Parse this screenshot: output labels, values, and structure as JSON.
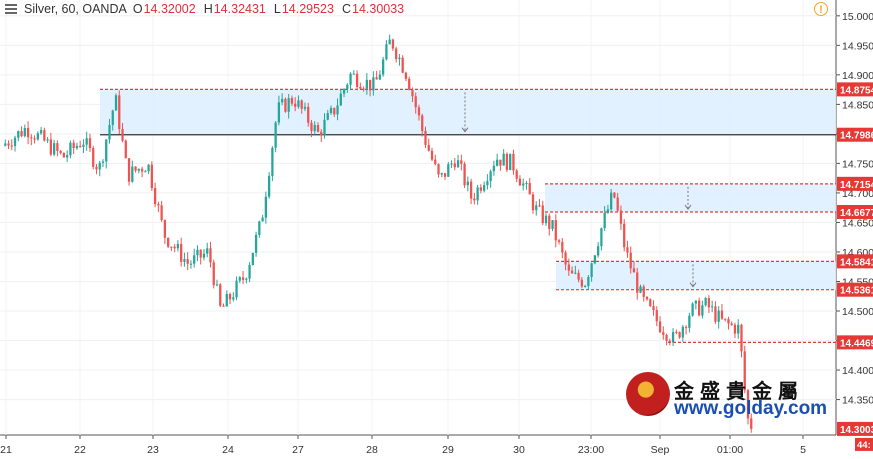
{
  "header": {
    "symbol": "Silver, 60, OANDA",
    "open_label": "O",
    "open": "14.32002",
    "high_label": "H",
    "high": "14.32431",
    "low_label": "L",
    "low": "14.29523",
    "close_label": "C",
    "close": "14.30033"
  },
  "icons": {
    "menu": "menu-icon",
    "warning": "warning-icon"
  },
  "watermark": {
    "cn_text": "金盛貴金屬",
    "url": "www.golday.com"
  },
  "colors": {
    "up": "#26a69a",
    "down": "#ef5350",
    "zone_fill": "#ddeeff",
    "level_line": "#e53935",
    "price_tag": "#e53935"
  },
  "chart_data": {
    "type": "candlestick",
    "title": "",
    "xlabel": "",
    "ylabel": "",
    "ylim": [
      14.29,
      15.02
    ],
    "y_ticks": [
      "15.000",
      "14.950",
      "14.900",
      "14.850",
      "14.800",
      "14.750",
      "14.700",
      "14.650",
      "14.600",
      "14.550",
      "14.500",
      "14.450",
      "14.400",
      "14.350"
    ],
    "x_ticks": [
      "21",
      "22",
      "23",
      "24",
      "27",
      "28",
      "29",
      "30",
      "23:00",
      "Sep",
      "01:00",
      "5"
    ],
    "price_levels": [
      {
        "label": "14.8754",
        "value": 14.8754
      },
      {
        "label": "14.7986",
        "value": 14.7986
      },
      {
        "label": "14.7154",
        "value": 14.7154
      },
      {
        "label": "14.6677",
        "value": 14.6677
      },
      {
        "label": "14.5841",
        "value": 14.5841
      },
      {
        "label": "14.5361",
        "value": 14.5361
      },
      {
        "label": "14.4469",
        "value": 14.4469
      }
    ],
    "zones": [
      {
        "top": 14.8754,
        "bottom": 14.7986
      },
      {
        "top": 14.7154,
        "bottom": 14.6677
      },
      {
        "top": 14.5841,
        "bottom": 14.5361
      }
    ],
    "last_price": {
      "label": "14.3003",
      "value": 14.3003
    },
    "countdown": "44:",
    "close_path": [
      {
        "t": 0.0,
        "c": 14.78
      },
      {
        "t": 0.03,
        "c": 14.81
      },
      {
        "t": 0.05,
        "c": 14.79
      },
      {
        "t": 0.075,
        "c": 14.76
      },
      {
        "t": 0.1,
        "c": 14.79
      },
      {
        "t": 0.12,
        "c": 14.74
      },
      {
        "t": 0.14,
        "c": 14.86
      },
      {
        "t": 0.155,
        "c": 14.73
      },
      {
        "t": 0.18,
        "c": 14.75
      },
      {
        "t": 0.2,
        "c": 14.63
      },
      {
        "t": 0.23,
        "c": 14.58
      },
      {
        "t": 0.255,
        "c": 14.6
      },
      {
        "t": 0.27,
        "c": 14.5
      },
      {
        "t": 0.3,
        "c": 14.56
      },
      {
        "t": 0.32,
        "c": 14.65
      },
      {
        "t": 0.34,
        "c": 14.84
      },
      {
        "t": 0.36,
        "c": 14.86
      },
      {
        "t": 0.39,
        "c": 14.8
      },
      {
        "t": 0.41,
        "c": 14.84
      },
      {
        "t": 0.43,
        "c": 14.9
      },
      {
        "t": 0.46,
        "c": 14.88
      },
      {
        "t": 0.48,
        "c": 14.96
      },
      {
        "t": 0.5,
        "c": 14.9
      },
      {
        "t": 0.52,
        "c": 14.8
      },
      {
        "t": 0.54,
        "c": 14.72
      },
      {
        "t": 0.56,
        "c": 14.76
      },
      {
        "t": 0.58,
        "c": 14.69
      },
      {
        "t": 0.61,
        "c": 14.76
      },
      {
        "t": 0.63,
        "c": 14.75
      },
      {
        "t": 0.66,
        "c": 14.67
      },
      {
        "t": 0.68,
        "c": 14.64
      },
      {
        "t": 0.7,
        "c": 14.56
      },
      {
        "t": 0.72,
        "c": 14.55
      },
      {
        "t": 0.74,
        "c": 14.64
      },
      {
        "t": 0.755,
        "c": 14.7
      },
      {
        "t": 0.77,
        "c": 14.6
      },
      {
        "t": 0.79,
        "c": 14.52
      },
      {
        "t": 0.81,
        "c": 14.48
      },
      {
        "t": 0.83,
        "c": 14.45
      },
      {
        "t": 0.85,
        "c": 14.5
      },
      {
        "t": 0.87,
        "c": 14.51
      },
      {
        "t": 0.89,
        "c": 14.48
      },
      {
        "t": 0.91,
        "c": 14.47
      },
      {
        "t": 0.92,
        "c": 14.32
      },
      {
        "t": 0.925,
        "c": 14.3
      }
    ]
  }
}
